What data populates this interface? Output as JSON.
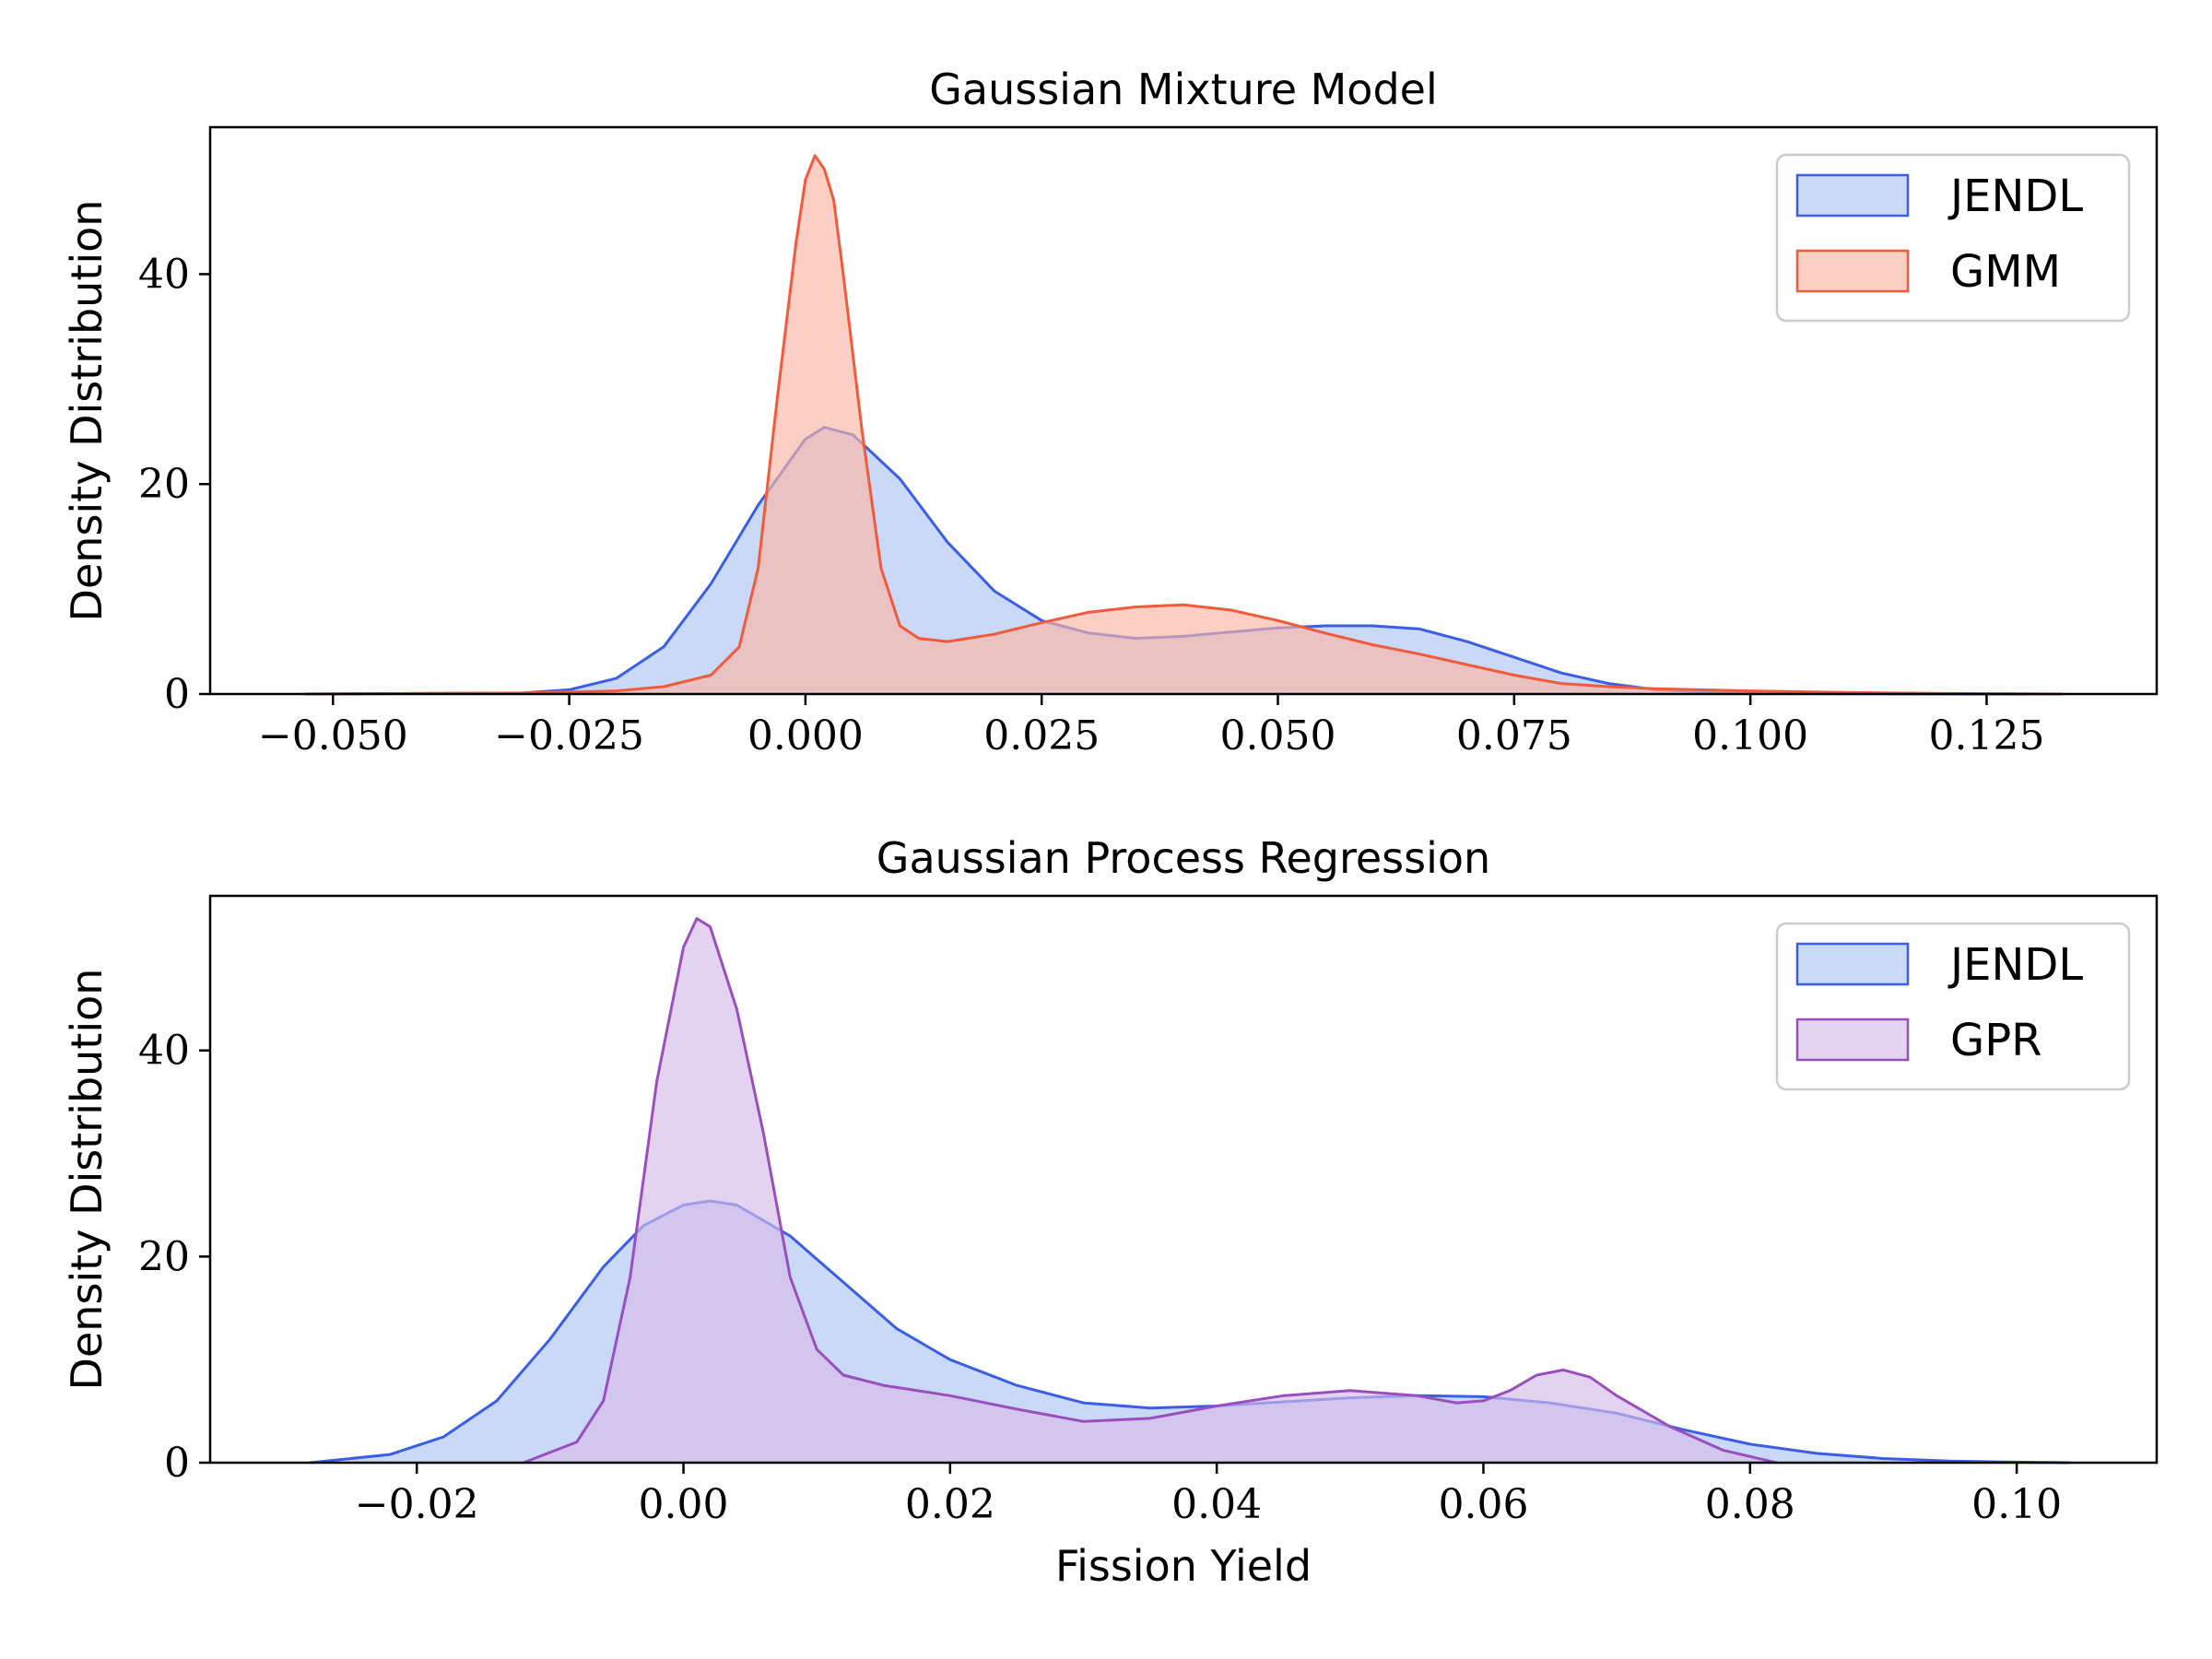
{
  "chart_data": [
    {
      "type": "area",
      "title": "Gaussian Mixture Model",
      "xlabel": "",
      "ylabel": "Density Distribution",
      "xlim": [
        -0.063,
        0.143
      ],
      "ylim": [
        0,
        54
      ],
      "xticks": [
        -0.05,
        -0.025,
        0.0,
        0.025,
        0.05,
        0.075,
        0.1,
        0.125
      ],
      "xtick_labels": [
        "−0.050",
        "−0.025",
        "0.000",
        "0.025",
        "0.050",
        "0.075",
        "0.100",
        "0.125"
      ],
      "yticks": [
        0,
        20,
        40
      ],
      "ytick_labels": [
        "0",
        "20",
        "40"
      ],
      "legend_position": "top-right",
      "series": [
        {
          "name": "JENDL",
          "stroke": "#3a5ee8",
          "fill": "#aec4f5",
          "x": [
            -0.053,
            -0.03,
            -0.025,
            -0.02,
            -0.015,
            -0.01,
            -0.005,
            0.0,
            0.002,
            0.005,
            0.01,
            0.015,
            0.02,
            0.025,
            0.03,
            0.035,
            0.04,
            0.045,
            0.05,
            0.055,
            0.06,
            0.065,
            0.07,
            0.075,
            0.08,
            0.085,
            0.09,
            0.095,
            0.1,
            0.11,
            0.12,
            0.133
          ],
          "y": [
            0,
            0.1,
            0.4,
            1.5,
            4.5,
            10.5,
            18,
            24.3,
            25.4,
            24.7,
            20.5,
            14.5,
            9.8,
            7.0,
            5.8,
            5.3,
            5.5,
            5.9,
            6.3,
            6.5,
            6.5,
            6.2,
            5.0,
            3.5,
            2.0,
            1.0,
            0.4,
            0.2,
            0.1,
            0.03,
            0.01,
            0
          ]
        },
        {
          "name": "GMM",
          "stroke": "#f25a3c",
          "fill": "#fab5a4",
          "x": [
            -0.053,
            -0.03,
            -0.02,
            -0.015,
            -0.01,
            -0.007,
            -0.005,
            -0.003,
            -0.001,
            0.0,
            0.001,
            0.002,
            0.003,
            0.004,
            0.006,
            0.008,
            0.01,
            0.012,
            0.015,
            0.02,
            0.025,
            0.03,
            0.035,
            0.04,
            0.045,
            0.05,
            0.055,
            0.06,
            0.065,
            0.07,
            0.075,
            0.08,
            0.085,
            0.09,
            0.1,
            0.11,
            0.12,
            0.133
          ],
          "y": [
            0,
            0.1,
            0.3,
            0.7,
            1.8,
            4.5,
            12,
            28,
            43,
            49,
            51.3,
            50,
            47,
            40,
            25,
            12,
            6.5,
            5.3,
            5.0,
            5.7,
            6.8,
            7.8,
            8.3,
            8.5,
            8.0,
            7.0,
            5.8,
            4.7,
            3.8,
            2.8,
            1.8,
            1.0,
            0.7,
            0.5,
            0.3,
            0.15,
            0.05,
            0
          ]
        }
      ]
    },
    {
      "type": "area",
      "title": "Gaussian Process Regression",
      "xlabel": "Fission Yield",
      "ylabel": "Density Distribution",
      "xlim": [
        -0.0355,
        0.1105
      ],
      "ylim": [
        0,
        55
      ],
      "xticks": [
        -0.02,
        0.0,
        0.02,
        0.04,
        0.06,
        0.08,
        0.1
      ],
      "xtick_labels": [
        "−0.02",
        "0.00",
        "0.02",
        "0.04",
        "0.06",
        "0.08",
        "0.10"
      ],
      "yticks": [
        0,
        20,
        40
      ],
      "ytick_labels": [
        "0",
        "20",
        "40"
      ],
      "legend_position": "top-right",
      "series": [
        {
          "name": "JENDL",
          "stroke": "#3a5ee8",
          "fill": "#aec4f5",
          "x": [
            -0.028,
            -0.022,
            -0.018,
            -0.014,
            -0.01,
            -0.006,
            -0.003,
            0.0,
            0.002,
            0.004,
            0.008,
            0.012,
            0.016,
            0.02,
            0.025,
            0.03,
            0.035,
            0.04,
            0.045,
            0.05,
            0.055,
            0.06,
            0.065,
            0.07,
            0.075,
            0.08,
            0.085,
            0.09,
            0.095,
            0.1,
            0.104
          ],
          "y": [
            0,
            0.8,
            2.5,
            6,
            12,
            19,
            23,
            25,
            25.4,
            25,
            22,
            17.5,
            13,
            10,
            7.5,
            5.8,
            5.3,
            5.5,
            5.9,
            6.3,
            6.5,
            6.4,
            5.8,
            4.8,
            3.2,
            1.8,
            0.9,
            0.4,
            0.15,
            0.05,
            0
          ]
        },
        {
          "name": "GPR",
          "stroke": "#9a4fbf",
          "fill": "#d6bce8",
          "x": [
            -0.012,
            -0.008,
            -0.006,
            -0.004,
            -0.002,
            0.0,
            0.001,
            0.002,
            0.004,
            0.006,
            0.008,
            0.01,
            0.012,
            0.015,
            0.02,
            0.025,
            0.03,
            0.035,
            0.04,
            0.045,
            0.05,
            0.055,
            0.058,
            0.06,
            0.062,
            0.064,
            0.066,
            0.068,
            0.07,
            0.074,
            0.078,
            0.082
          ],
          "y": [
            0,
            2,
            6,
            18,
            37,
            50,
            52.8,
            52,
            44,
            32,
            18,
            11,
            8.5,
            7.5,
            6.5,
            5.2,
            4.0,
            4.3,
            5.5,
            6.5,
            7.0,
            6.5,
            5.8,
            6.0,
            7.0,
            8.5,
            9.0,
            8.3,
            6.5,
            3.5,
            1.2,
            0
          ]
        }
      ]
    }
  ]
}
